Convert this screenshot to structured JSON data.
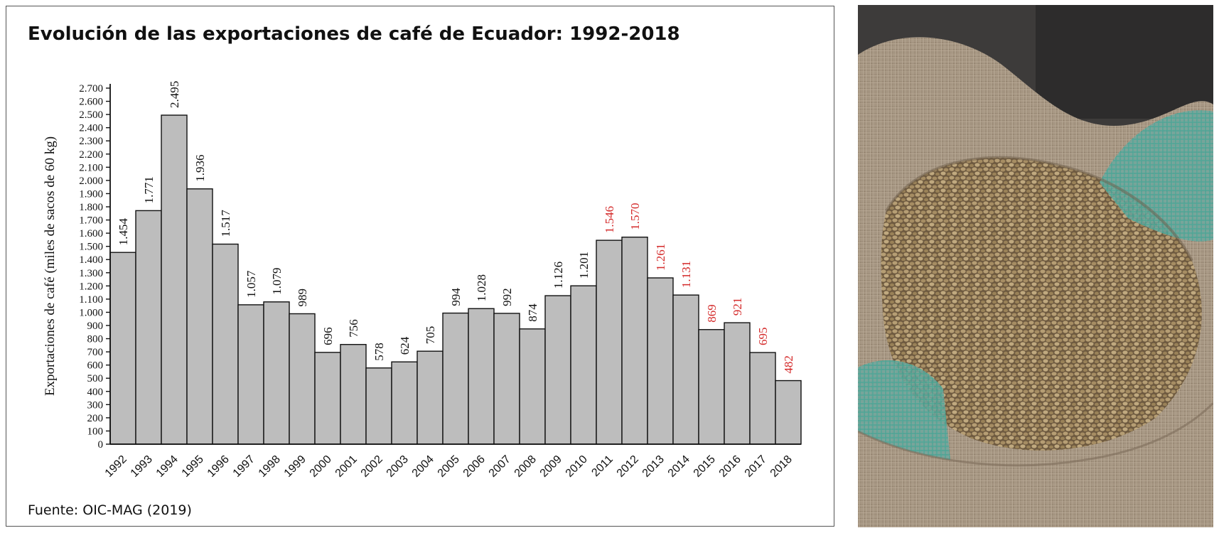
{
  "chart_data": {
    "type": "bar",
    "title": "Evolución de las exportaciones de café de Ecuador: 1992-2018",
    "ylabel": "Exportaciones de café (miles de sacos de 60 kg)",
    "xlabel": "",
    "source": "Fuente: OIC-MAG (2019)",
    "ylim": [
      0,
      2700
    ],
    "y_ticks": [
      0,
      100,
      200,
      300,
      400,
      500,
      600,
      700,
      800,
      900,
      1000,
      1100,
      1200,
      1300,
      1400,
      1500,
      1600,
      1700,
      1800,
      1900,
      2000,
      2100,
      2200,
      2300,
      2400,
      2500,
      2600,
      2700
    ],
    "y_tick_labels": [
      "0",
      "100",
      "200",
      "300",
      "400",
      "500",
      "600",
      "700",
      "800",
      "900",
      "1.000",
      "1.100",
      "1.200",
      "1.300",
      "1.400",
      "1.500",
      "1.600",
      "1.700",
      "1.800",
      "1.900",
      "2.000",
      "2.100",
      "2.200",
      "2.300",
      "2.400",
      "2.500",
      "2.600",
      "2.700"
    ],
    "categories": [
      "1992",
      "1993",
      "1994",
      "1995",
      "1996",
      "1997",
      "1998",
      "1999",
      "2000",
      "2001",
      "2002",
      "2003",
      "2004",
      "2005",
      "2006",
      "2007",
      "2008",
      "2009",
      "2010",
      "2011",
      "2012",
      "2013",
      "2014",
      "2015",
      "2016",
      "2017",
      "2018"
    ],
    "values": [
      1454,
      1771,
      2495,
      1936,
      1517,
      1057,
      1079,
      989,
      696,
      756,
      578,
      624,
      705,
      994,
      1028,
      992,
      874,
      1126,
      1201,
      1546,
      1570,
      1261,
      1131,
      869,
      921,
      695,
      482
    ],
    "data_labels": [
      "1.454",
      "1.771",
      "2.495",
      "1.936",
      "1.517",
      "1.057",
      "1.079",
      "989",
      "696",
      "756",
      "578",
      "624",
      "705",
      "994",
      "1.028",
      "992",
      "874",
      "1.126",
      "1.201",
      "1.546",
      "1.570",
      "1.261",
      "1.131",
      "869",
      "921",
      "695",
      "482"
    ],
    "highlight_from_category": "2011",
    "grid": false,
    "legend": "none",
    "colors": {
      "bar_fill": "#bdbdbd",
      "bar_stroke": "#111111",
      "label_default": "#111111",
      "label_highlight": "#d42a2a"
    }
  },
  "photo": {
    "icon": "coffee-beans-sack-photo"
  }
}
